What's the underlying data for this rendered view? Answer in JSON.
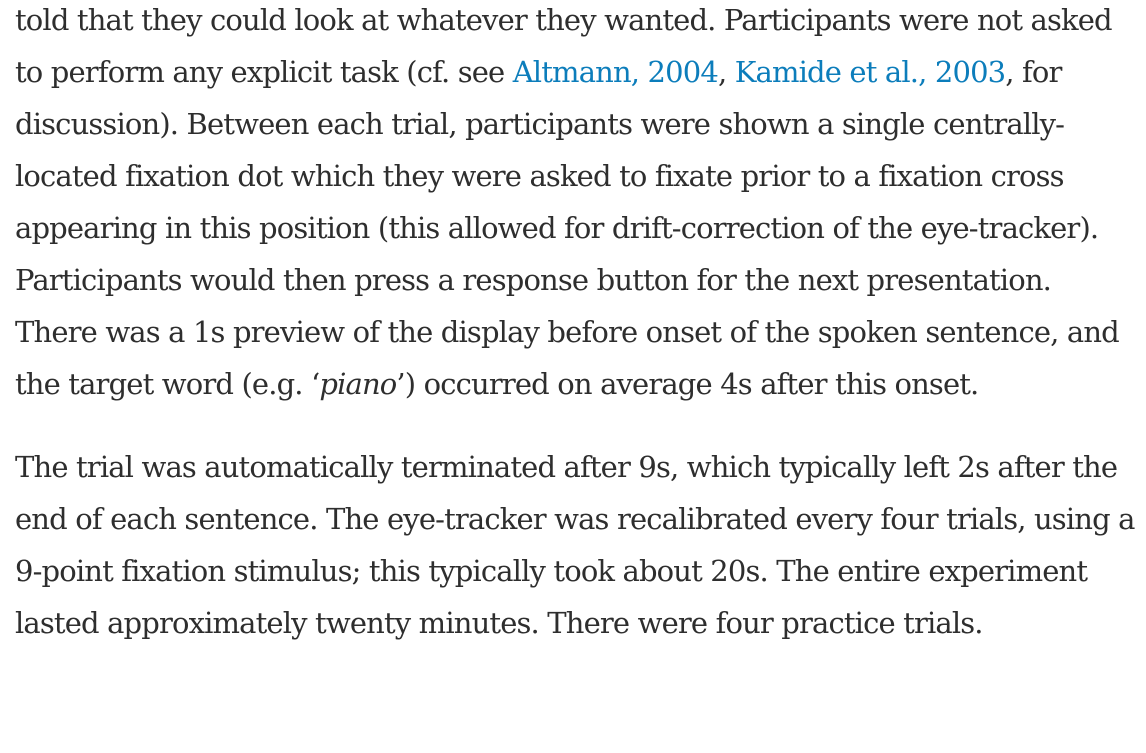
{
  "paragraphs": [
    {
      "text_1": "told that they could look at whatever they wanted. Participants were not asked to perform any explicit task (cf. see ",
      "citation_1": "Altmann, 2004",
      "sep_1": ", ",
      "citation_2": "Kamide et al., 2003",
      "text_2": ", for discussion). Between each trial, participants were shown a single centrally-located fixation dot which they were asked to fixate prior to a fixation cross appearing in this position (this allowed for drift-correction of the eye-tracker). Participants would then press a response button for the next presentation. There was a 1s preview of the display before onset of the spoken sentence, and the target word (e.g. ‘",
      "italic_word": "piano",
      "text_3": "’) occurred on average 4s after this onset."
    },
    {
      "text": "The trial was automatically terminated after 9s, which typically left 2s after the end of each sentence. The eye-tracker was recalibrated every four trials, using a 9-point fixation stimulus; this typically took about 20s. The entire experiment lasted approximately twenty minutes. There were four practice trials."
    }
  ],
  "colors": {
    "body_text": "#2e2e2e",
    "link": "#0c7dbb",
    "background": "#ffffff"
  }
}
